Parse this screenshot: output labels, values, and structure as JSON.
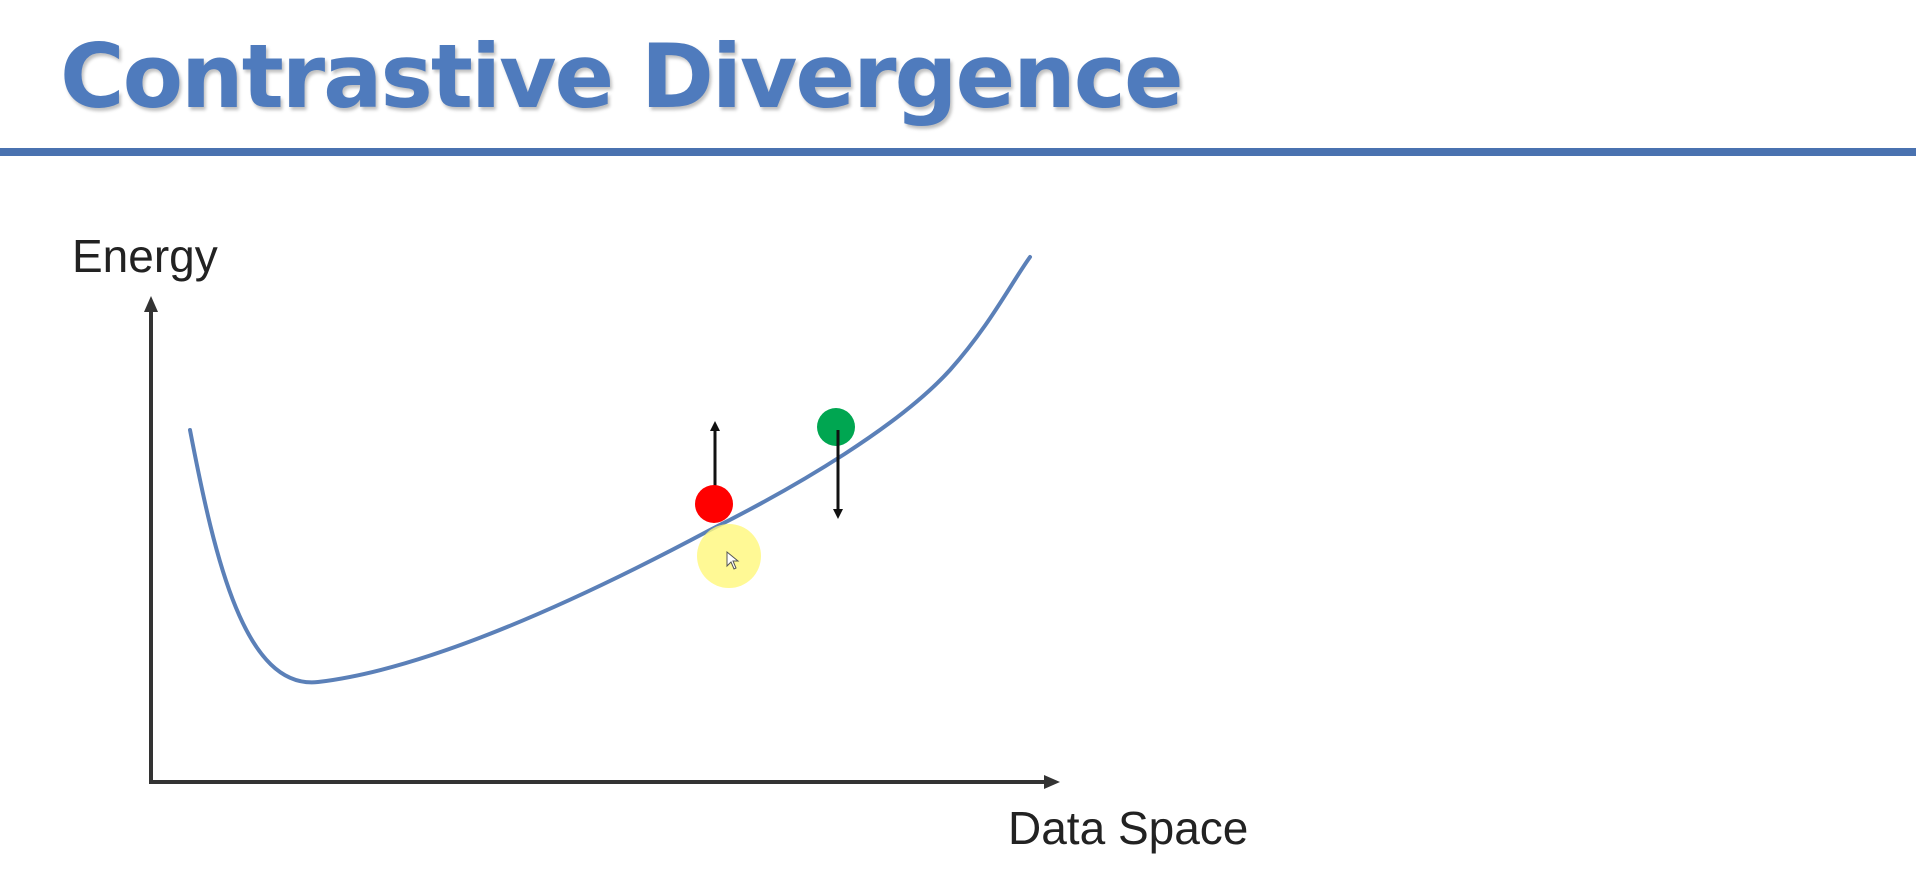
{
  "slide": {
    "title": "Contrastive Divergence"
  },
  "diagram": {
    "y_axis_label": "Energy",
    "x_axis_label": "Data Space",
    "curve_color": "#5b80b8",
    "axis_color": "#333333",
    "points": [
      {
        "name": "red-point",
        "color": "#ff0000",
        "arrow": "up"
      },
      {
        "name": "green-point",
        "color": "#00a651",
        "arrow": "down"
      }
    ],
    "cursor_highlight_color": "#fff87a"
  }
}
